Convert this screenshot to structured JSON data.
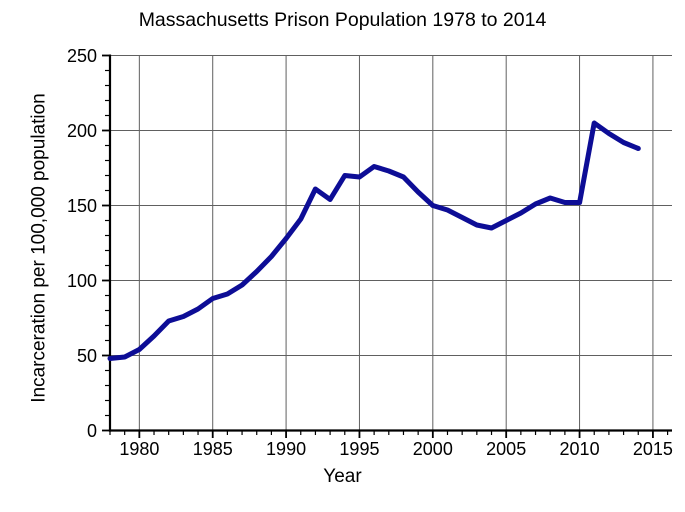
{
  "chart_data": {
    "type": "line",
    "title": "Massachusetts Prison Population 1978 to 2014",
    "xlabel": "Year",
    "ylabel": "Incarceration per 100,000 population",
    "x": [
      1978,
      1979,
      1980,
      1981,
      1982,
      1983,
      1984,
      1985,
      1986,
      1987,
      1988,
      1989,
      1990,
      1991,
      1992,
      1993,
      1994,
      1995,
      1996,
      1997,
      1998,
      1999,
      2000,
      2001,
      2002,
      2003,
      2004,
      2005,
      2006,
      2007,
      2008,
      2009,
      2010,
      2011,
      2012,
      2013,
      2014
    ],
    "y": [
      48,
      49,
      54,
      63,
      73,
      76,
      81,
      88,
      91,
      97,
      106,
      116,
      128,
      141,
      161,
      154,
      170,
      169,
      176,
      173,
      169,
      159,
      150,
      147,
      142,
      137,
      135,
      140,
      145,
      151,
      155,
      152,
      152,
      205,
      198,
      192,
      188
    ],
    "xlim": [
      1978,
      2016.3
    ],
    "ylim": [
      0,
      250
    ],
    "x_major_ticks": [
      1980,
      1985,
      1990,
      1995,
      2000,
      2005,
      2010,
      2015
    ],
    "y_major_ticks": [
      0,
      50,
      100,
      150,
      200,
      250
    ],
    "x_minor_step": 1,
    "y_minor_step": 10,
    "grid": true,
    "legend": "none",
    "colors": {
      "line": "#0d0d96",
      "grid": "#606060",
      "axis": "#000000",
      "text": "#000000",
      "background": "#ffffff"
    }
  }
}
